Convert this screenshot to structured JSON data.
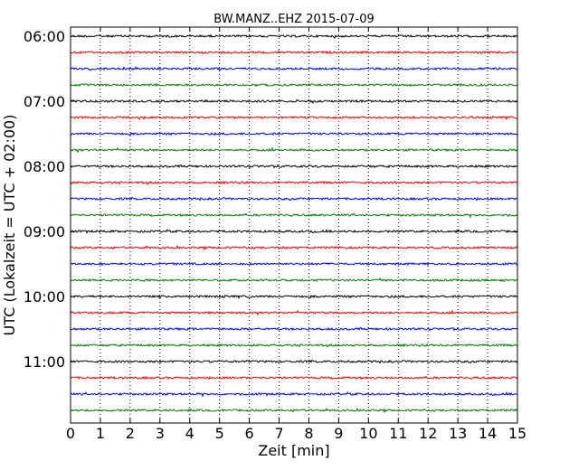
{
  "chart_data": {
    "type": "line",
    "title": "BW.MANZ..EHZ 2015-07-09",
    "xlabel": "Zeit  [min]",
    "ylabel": "UTC (Lokalzeit = UTC + 02:00)",
    "xlim": [
      0,
      15
    ],
    "x_ticks": [
      "0",
      "1",
      "2",
      "3",
      "4",
      "5",
      "6",
      "7",
      "8",
      "9",
      "10",
      "11",
      "12",
      "13",
      "14",
      "15"
    ],
    "y_ticks": [
      "06:00",
      "07:00",
      "08:00",
      "09:00",
      "10:00",
      "11:00"
    ],
    "grid": "vertical dotted lines at each minute",
    "trace_colors": [
      "#000000",
      "#ff0000",
      "#0000ff",
      "#008000"
    ],
    "traces": [
      {
        "start": "06:00",
        "color": "#000000"
      },
      {
        "start": "06:15",
        "color": "#ff0000"
      },
      {
        "start": "06:30",
        "color": "#0000ff"
      },
      {
        "start": "06:45",
        "color": "#008000"
      },
      {
        "start": "07:00",
        "color": "#000000"
      },
      {
        "start": "07:15",
        "color": "#ff0000"
      },
      {
        "start": "07:30",
        "color": "#0000ff"
      },
      {
        "start": "07:45",
        "color": "#008000"
      },
      {
        "start": "08:00",
        "color": "#000000"
      },
      {
        "start": "08:15",
        "color": "#ff0000"
      },
      {
        "start": "08:30",
        "color": "#0000ff"
      },
      {
        "start": "08:45",
        "color": "#008000"
      },
      {
        "start": "09:00",
        "color": "#000000"
      },
      {
        "start": "09:15",
        "color": "#ff0000"
      },
      {
        "start": "09:30",
        "color": "#0000ff"
      },
      {
        "start": "09:45",
        "color": "#008000"
      },
      {
        "start": "10:00",
        "color": "#000000"
      },
      {
        "start": "10:15",
        "color": "#ff0000"
      },
      {
        "start": "10:30",
        "color": "#0000ff"
      },
      {
        "start": "10:45",
        "color": "#008000"
      },
      {
        "start": "11:00",
        "color": "#000000"
      },
      {
        "start": "11:15",
        "color": "#ff0000"
      },
      {
        "start": "11:30",
        "color": "#0000ff"
      },
      {
        "start": "11:45",
        "color": "#008000"
      }
    ]
  }
}
